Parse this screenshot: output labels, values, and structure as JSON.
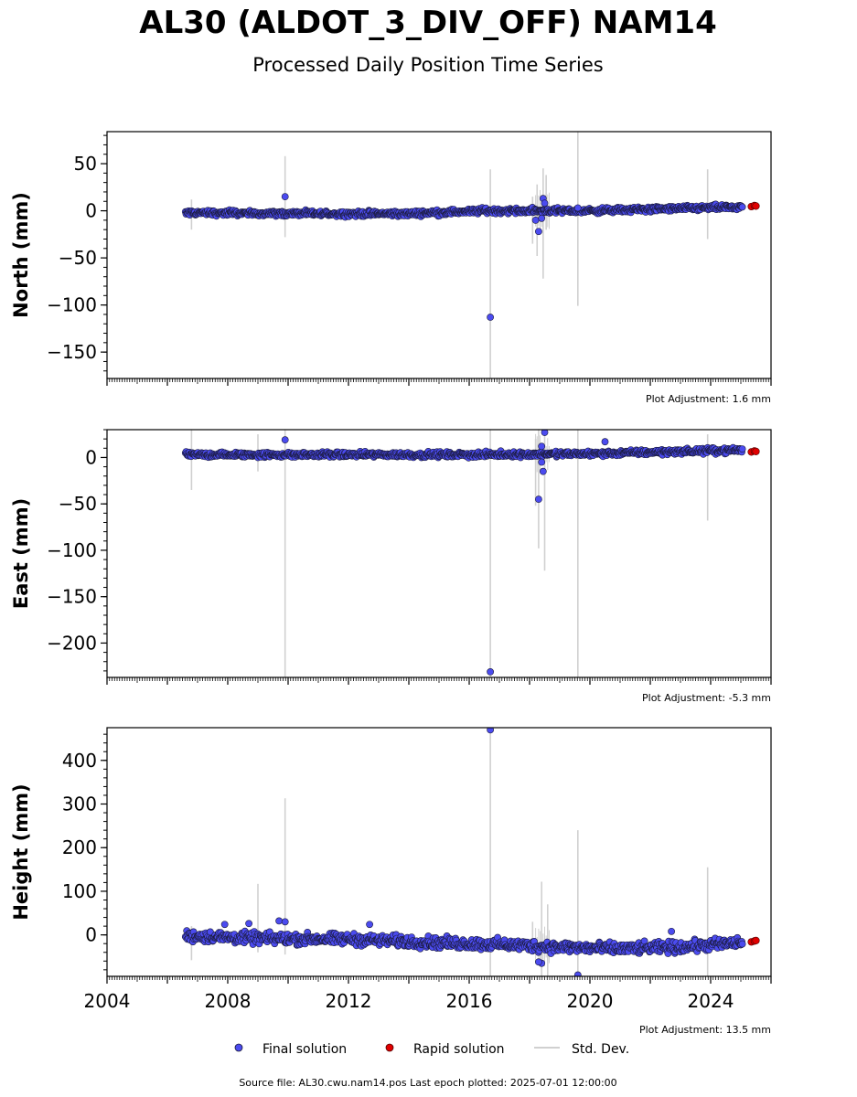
{
  "title": "AL30 (ALDOT_3_DIV_OFF) NAM14",
  "subtitle": "Processed Daily Position Time Series",
  "legend": {
    "final": "Final solution",
    "rapid": "Rapid solution",
    "std": "Std. Dev."
  },
  "footer": "Source file: AL30.cwu.nam14.pos  Last epoch plotted: 2025-07-01 12:00:00",
  "colors": {
    "final": "#4b4bef",
    "final_edge": "#1a1a3a",
    "rapid": "#e00000",
    "std": "#d0d0d0"
  },
  "chart_data": [
    {
      "type": "scatter",
      "name": "north",
      "ylabel": "North (mm)",
      "adjustment": "Plot Adjustment: 1.6 mm",
      "xlim": [
        2004.0,
        2026.0
      ],
      "ylim": [
        -178,
        84
      ],
      "yticks": [
        50,
        0,
        -50,
        -100,
        -150
      ],
      "ytick_labels": [
        "50",
        "0",
        "−50",
        "−100",
        "−150"
      ],
      "show_xtick_labels": false,
      "trend": [
        [
          2006.6,
          -2
        ],
        [
          2010,
          -3
        ],
        [
          2014,
          -3
        ],
        [
          2016.5,
          0
        ],
        [
          2020,
          0
        ],
        [
          2025.0,
          4
        ]
      ],
      "scatter": 2,
      "final_outliers": [
        [
          2009.9,
          15
        ],
        [
          2016.7,
          -113
        ],
        [
          2018.2,
          -10
        ],
        [
          2018.3,
          -22
        ],
        [
          2018.45,
          13
        ],
        [
          2018.4,
          -8
        ],
        [
          2018.5,
          8
        ],
        [
          2019.6,
          3
        ]
      ],
      "rapid": [
        [
          2025.35,
          4.5
        ],
        [
          2025.45,
          5.5
        ],
        [
          2025.5,
          5
        ]
      ],
      "stdbars": [
        [
          2006.8,
          -20,
          12
        ],
        [
          2009.9,
          -28,
          58
        ],
        [
          2016.7,
          -178,
          44
        ],
        [
          2018.1,
          -35,
          15
        ],
        [
          2018.25,
          -48,
          28
        ],
        [
          2018.45,
          -72,
          45
        ],
        [
          2018.55,
          -20,
          38
        ],
        [
          2019.6,
          -101,
          84
        ],
        [
          2023.9,
          -30,
          44
        ]
      ]
    },
    {
      "type": "scatter",
      "name": "east",
      "ylabel": "East (mm)",
      "adjustment": "Plot Adjustment: -5.3 mm",
      "xlim": [
        2004.0,
        2026.0
      ],
      "ylim": [
        -237,
        30
      ],
      "yticks": [
        0,
        -50,
        -100,
        -150,
        -200
      ],
      "ytick_labels": [
        "0",
        "−50",
        "−100",
        "−150",
        "−200"
      ],
      "show_xtick_labels": false,
      "trend": [
        [
          2006.6,
          3
        ],
        [
          2012,
          3
        ],
        [
          2016,
          3
        ],
        [
          2020,
          4
        ],
        [
          2025.0,
          8
        ]
      ],
      "scatter": 2,
      "final_outliers": [
        [
          2009.9,
          19
        ],
        [
          2016.7,
          -231
        ],
        [
          2018.3,
          -45
        ],
        [
          2018.45,
          -15
        ],
        [
          2018.4,
          -5
        ],
        [
          2018.5,
          27
        ],
        [
          2018.4,
          12
        ],
        [
          2020.5,
          17
        ]
      ],
      "rapid": [
        [
          2025.35,
          6
        ],
        [
          2025.45,
          7
        ],
        [
          2025.5,
          6.5
        ]
      ],
      "stdbars": [
        [
          2006.8,
          -35,
          30
        ],
        [
          2009.0,
          -15,
          25
        ],
        [
          2009.9,
          -237,
          30
        ],
        [
          2016.7,
          -237,
          30
        ],
        [
          2018.2,
          -52,
          20
        ],
        [
          2018.3,
          -98,
          30
        ],
        [
          2018.5,
          -122,
          30
        ],
        [
          2019.6,
          -237,
          30
        ],
        [
          2023.9,
          -68,
          25
        ]
      ]
    },
    {
      "type": "scatter",
      "name": "height",
      "ylabel": "Height (mm)",
      "adjustment": "Plot Adjustment: 13.5 mm",
      "xlim": [
        2004.0,
        2026.0
      ],
      "ylim": [
        -95,
        475
      ],
      "yticks": [
        400,
        300,
        200,
        100,
        0
      ],
      "ytick_labels": [
        "400",
        "300",
        "200",
        "100",
        "0"
      ],
      "show_xtick_labels": true,
      "xticks": [
        2004,
        2008,
        2012,
        2016,
        2020,
        2024
      ],
      "trend": [
        [
          2006.6,
          -2
        ],
        [
          2009,
          -8
        ],
        [
          2012,
          -10
        ],
        [
          2015,
          -18
        ],
        [
          2017,
          -22
        ],
        [
          2019,
          -28
        ],
        [
          2021,
          -32
        ],
        [
          2023,
          -28
        ],
        [
          2025.0,
          -18
        ]
      ],
      "scatter": 9,
      "final_outliers": [
        [
          2007.9,
          24
        ],
        [
          2008.7,
          26
        ],
        [
          2009.7,
          32
        ],
        [
          2009.9,
          30
        ],
        [
          2012.7,
          24
        ],
        [
          2016.7,
          470
        ],
        [
          2018.4,
          -65
        ],
        [
          2018.3,
          -62
        ],
        [
          2019.6,
          -92
        ],
        [
          2022.7,
          8
        ]
      ],
      "rapid": [
        [
          2025.35,
          -16
        ],
        [
          2025.45,
          -14
        ],
        [
          2025.5,
          -13
        ]
      ],
      "stdbars": [
        [
          2006.8,
          -58,
          20
        ],
        [
          2009.0,
          -40,
          117
        ],
        [
          2009.9,
          -45,
          313
        ],
        [
          2016.7,
          -95,
          475
        ],
        [
          2018.1,
          -45,
          30
        ],
        [
          2018.4,
          -95,
          122
        ],
        [
          2018.6,
          -95,
          70
        ],
        [
          2019.6,
          -95,
          240
        ],
        [
          2023.9,
          -95,
          155
        ]
      ]
    }
  ]
}
